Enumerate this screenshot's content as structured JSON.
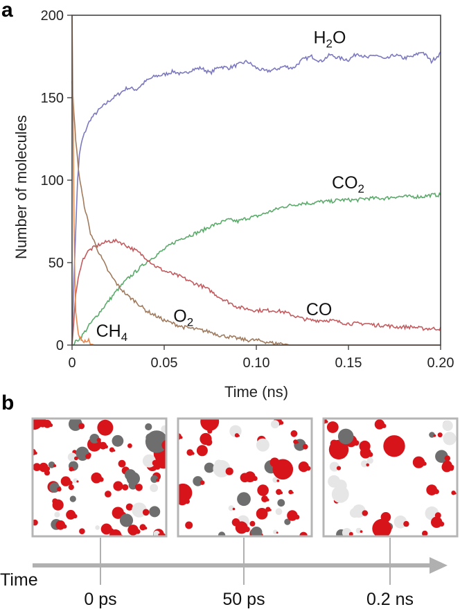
{
  "panels": {
    "a": "a",
    "b": "b"
  },
  "chart_data": {
    "type": "line",
    "xlabel": "Time (ns)",
    "ylabel": "Number of molecules",
    "xlim": [
      0,
      0.2
    ],
    "ylim": [
      0,
      200
    ],
    "x_ticks": [
      0,
      0.05,
      0.1,
      0.15,
      0.2
    ],
    "x_tick_labels": [
      "0",
      "0.05",
      "0.10",
      "0.15",
      "0.20"
    ],
    "y_ticks": [
      0,
      50,
      100,
      150,
      200
    ],
    "y_tick_labels": [
      "0",
      "50",
      "100",
      "150",
      "200"
    ],
    "series": [
      {
        "name": "H2O",
        "label_main": "H",
        "label_sub": "2",
        "label_tail": "O",
        "label_x": 0.131,
        "label_y": 183,
        "color": "#7b78c0",
        "points": [
          [
            0,
            0
          ],
          [
            0.001,
            40
          ],
          [
            0.002,
            70
          ],
          [
            0.003,
            100
          ],
          [
            0.004,
            115
          ],
          [
            0.005,
            122
          ],
          [
            0.006,
            126
          ],
          [
            0.008,
            132
          ],
          [
            0.01,
            137
          ],
          [
            0.015,
            143
          ],
          [
            0.02,
            148
          ],
          [
            0.025,
            152
          ],
          [
            0.03,
            156
          ],
          [
            0.035,
            155
          ],
          [
            0.04,
            160
          ],
          [
            0.045,
            163
          ],
          [
            0.05,
            164
          ],
          [
            0.055,
            166
          ],
          [
            0.06,
            164
          ],
          [
            0.065,
            167
          ],
          [
            0.07,
            168
          ],
          [
            0.075,
            165
          ],
          [
            0.08,
            169
          ],
          [
            0.085,
            168
          ],
          [
            0.09,
            170
          ],
          [
            0.095,
            172
          ],
          [
            0.1,
            168
          ],
          [
            0.105,
            166
          ],
          [
            0.11,
            167
          ],
          [
            0.115,
            169
          ],
          [
            0.12,
            168
          ],
          [
            0.125,
            173
          ],
          [
            0.13,
            175
          ],
          [
            0.135,
            172
          ],
          [
            0.14,
            176
          ],
          [
            0.145,
            174
          ],
          [
            0.15,
            173
          ],
          [
            0.155,
            177
          ],
          [
            0.16,
            174
          ],
          [
            0.165,
            176
          ],
          [
            0.17,
            173
          ],
          [
            0.175,
            176
          ],
          [
            0.18,
            174
          ],
          [
            0.185,
            175
          ],
          [
            0.19,
            178
          ],
          [
            0.195,
            172
          ],
          [
            0.2,
            177
          ]
        ]
      },
      {
        "name": "CO2",
        "label_main": "CO",
        "label_sub": "2",
        "label_tail": "",
        "label_x": 0.141,
        "label_y": 95,
        "color": "#5aaa6a",
        "points": [
          [
            0,
            0
          ],
          [
            0.005,
            5
          ],
          [
            0.01,
            13
          ],
          [
            0.015,
            20
          ],
          [
            0.02,
            27
          ],
          [
            0.025,
            34
          ],
          [
            0.03,
            40
          ],
          [
            0.035,
            45
          ],
          [
            0.04,
            50
          ],
          [
            0.045,
            54
          ],
          [
            0.05,
            58
          ],
          [
            0.055,
            62
          ],
          [
            0.06,
            65
          ],
          [
            0.065,
            67
          ],
          [
            0.07,
            69
          ],
          [
            0.075,
            72
          ],
          [
            0.08,
            74
          ],
          [
            0.085,
            76
          ],
          [
            0.09,
            75
          ],
          [
            0.095,
            77
          ],
          [
            0.1,
            78
          ],
          [
            0.105,
            80
          ],
          [
            0.11,
            82
          ],
          [
            0.115,
            84
          ],
          [
            0.12,
            85
          ],
          [
            0.125,
            86
          ],
          [
            0.13,
            86
          ],
          [
            0.135,
            87
          ],
          [
            0.14,
            87
          ],
          [
            0.145,
            88
          ],
          [
            0.15,
            88
          ],
          [
            0.155,
            88
          ],
          [
            0.16,
            89
          ],
          [
            0.165,
            89
          ],
          [
            0.17,
            89
          ],
          [
            0.175,
            90
          ],
          [
            0.18,
            90
          ],
          [
            0.185,
            90
          ],
          [
            0.19,
            90
          ],
          [
            0.195,
            91
          ],
          [
            0.2,
            91
          ]
        ]
      },
      {
        "name": "CO",
        "label_main": "CO",
        "label_sub": "",
        "label_tail": "",
        "label_x": 0.127,
        "label_y": 18,
        "color": "#c45a5e",
        "points": [
          [
            0,
            0
          ],
          [
            0.002,
            30
          ],
          [
            0.004,
            45
          ],
          [
            0.006,
            52
          ],
          [
            0.008,
            56
          ],
          [
            0.01,
            58
          ],
          [
            0.015,
            61
          ],
          [
            0.02,
            63
          ],
          [
            0.025,
            63
          ],
          [
            0.03,
            60
          ],
          [
            0.035,
            57
          ],
          [
            0.04,
            53
          ],
          [
            0.045,
            48
          ],
          [
            0.05,
            45
          ],
          [
            0.055,
            43
          ],
          [
            0.06,
            41
          ],
          [
            0.065,
            38
          ],
          [
            0.07,
            36
          ],
          [
            0.075,
            33
          ],
          [
            0.08,
            29
          ],
          [
            0.085,
            26
          ],
          [
            0.09,
            23
          ],
          [
            0.095,
            22
          ],
          [
            0.1,
            21
          ],
          [
            0.105,
            21
          ],
          [
            0.11,
            21
          ],
          [
            0.115,
            20
          ],
          [
            0.12,
            18
          ],
          [
            0.125,
            16
          ],
          [
            0.13,
            15
          ],
          [
            0.135,
            15
          ],
          [
            0.14,
            15
          ],
          [
            0.145,
            14
          ],
          [
            0.15,
            13
          ],
          [
            0.155,
            13
          ],
          [
            0.16,
            13
          ],
          [
            0.165,
            12
          ],
          [
            0.17,
            12
          ],
          [
            0.175,
            11
          ],
          [
            0.18,
            11
          ],
          [
            0.185,
            11
          ],
          [
            0.19,
            10
          ],
          [
            0.195,
            10
          ],
          [
            0.2,
            10
          ]
        ]
      },
      {
        "name": "O2",
        "label_main": "O",
        "label_sub": "2",
        "label_tail": "",
        "label_x": 0.055,
        "label_y": 14,
        "color": "#a07a5c",
        "points": [
          [
            0,
            160
          ],
          [
            0.001,
            140
          ],
          [
            0.002,
            125
          ],
          [
            0.003,
            112
          ],
          [
            0.004,
            102
          ],
          [
            0.005,
            95
          ],
          [
            0.006,
            88
          ],
          [
            0.008,
            78
          ],
          [
            0.01,
            68
          ],
          [
            0.015,
            55
          ],
          [
            0.02,
            44
          ],
          [
            0.025,
            36
          ],
          [
            0.03,
            30
          ],
          [
            0.035,
            26
          ],
          [
            0.04,
            21
          ],
          [
            0.045,
            18
          ],
          [
            0.05,
            15
          ],
          [
            0.055,
            13
          ],
          [
            0.06,
            11
          ],
          [
            0.065,
            10
          ],
          [
            0.07,
            9
          ],
          [
            0.075,
            8
          ],
          [
            0.08,
            6
          ],
          [
            0.085,
            5
          ],
          [
            0.09,
            4
          ],
          [
            0.095,
            3
          ],
          [
            0.1,
            3
          ],
          [
            0.105,
            2
          ],
          [
            0.11,
            1
          ],
          [
            0.115,
            1
          ],
          [
            0.118,
            0
          ],
          [
            0.12,
            0
          ],
          [
            0.15,
            0
          ],
          [
            0.2,
            0
          ]
        ]
      },
      {
        "name": "CH4",
        "label_main": "CH",
        "label_sub": "4",
        "label_tail": "",
        "label_x": 0.013,
        "label_y": 5,
        "color": "#e8874c",
        "points": [
          [
            0,
            200
          ],
          [
            0.0005,
            150
          ],
          [
            0.001,
            80
          ],
          [
            0.0015,
            40
          ],
          [
            0.002,
            20
          ],
          [
            0.003,
            10
          ],
          [
            0.004,
            5
          ],
          [
            0.005,
            3
          ],
          [
            0.006,
            2
          ],
          [
            0.007,
            3
          ],
          [
            0.008,
            1
          ],
          [
            0.009,
            4
          ],
          [
            0.01,
            1
          ],
          [
            0.012,
            0
          ],
          [
            0.03,
            0
          ],
          [
            0.06,
            0
          ],
          [
            0.1,
            0
          ],
          [
            0.15,
            0
          ],
          [
            0.2,
            0
          ]
        ]
      }
    ]
  },
  "snapshots": [
    {
      "label": "0 ps"
    },
    {
      "label": "50 ps"
    },
    {
      "label": "0.2 ns"
    }
  ],
  "timeline": {
    "label": "Time"
  },
  "colors": {
    "axis": "#444444",
    "arrow": "#b0b0b0",
    "frame": "#b5b5b5",
    "oxygen": "#d8141b",
    "carbon": "#6e6e6e",
    "hydrogen": "#e6e6e6"
  }
}
